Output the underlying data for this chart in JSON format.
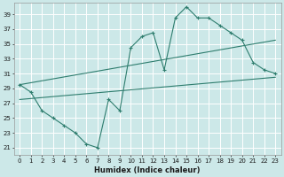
{
  "xlabel": "Humidex (Indice chaleur)",
  "bg_color": "#cce8e8",
  "grid_color": "#ffffff",
  "line_color": "#2e7d6e",
  "xlim": [
    -0.5,
    23.5
  ],
  "ylim": [
    20.0,
    40.5
  ],
  "xticks": [
    0,
    1,
    2,
    3,
    4,
    5,
    6,
    7,
    8,
    9,
    10,
    11,
    12,
    13,
    14,
    15,
    16,
    17,
    18,
    19,
    20,
    21,
    22,
    23
  ],
  "yticks": [
    21,
    23,
    25,
    27,
    29,
    31,
    33,
    35,
    37,
    39
  ],
  "curve1_x": [
    0,
    1,
    2,
    3,
    4,
    5,
    6,
    7,
    8,
    9,
    10,
    11,
    12,
    13,
    14,
    15,
    16,
    17,
    18,
    19,
    20,
    21,
    22,
    23
  ],
  "curve1_y": [
    29.5,
    28.5,
    26.0,
    25.0,
    24.0,
    23.0,
    21.5,
    21.0,
    27.5,
    26.0,
    34.5,
    36.0,
    36.5,
    31.5,
    38.5,
    40.0,
    38.5,
    38.5,
    37.5,
    36.5,
    35.5,
    32.5,
    31.5,
    31.0
  ],
  "curve2_x": [
    0,
    23
  ],
  "curve2_y": [
    29.5,
    35.5
  ],
  "curve3_x": [
    0,
    23
  ],
  "curve3_y": [
    27.5,
    30.5
  ]
}
